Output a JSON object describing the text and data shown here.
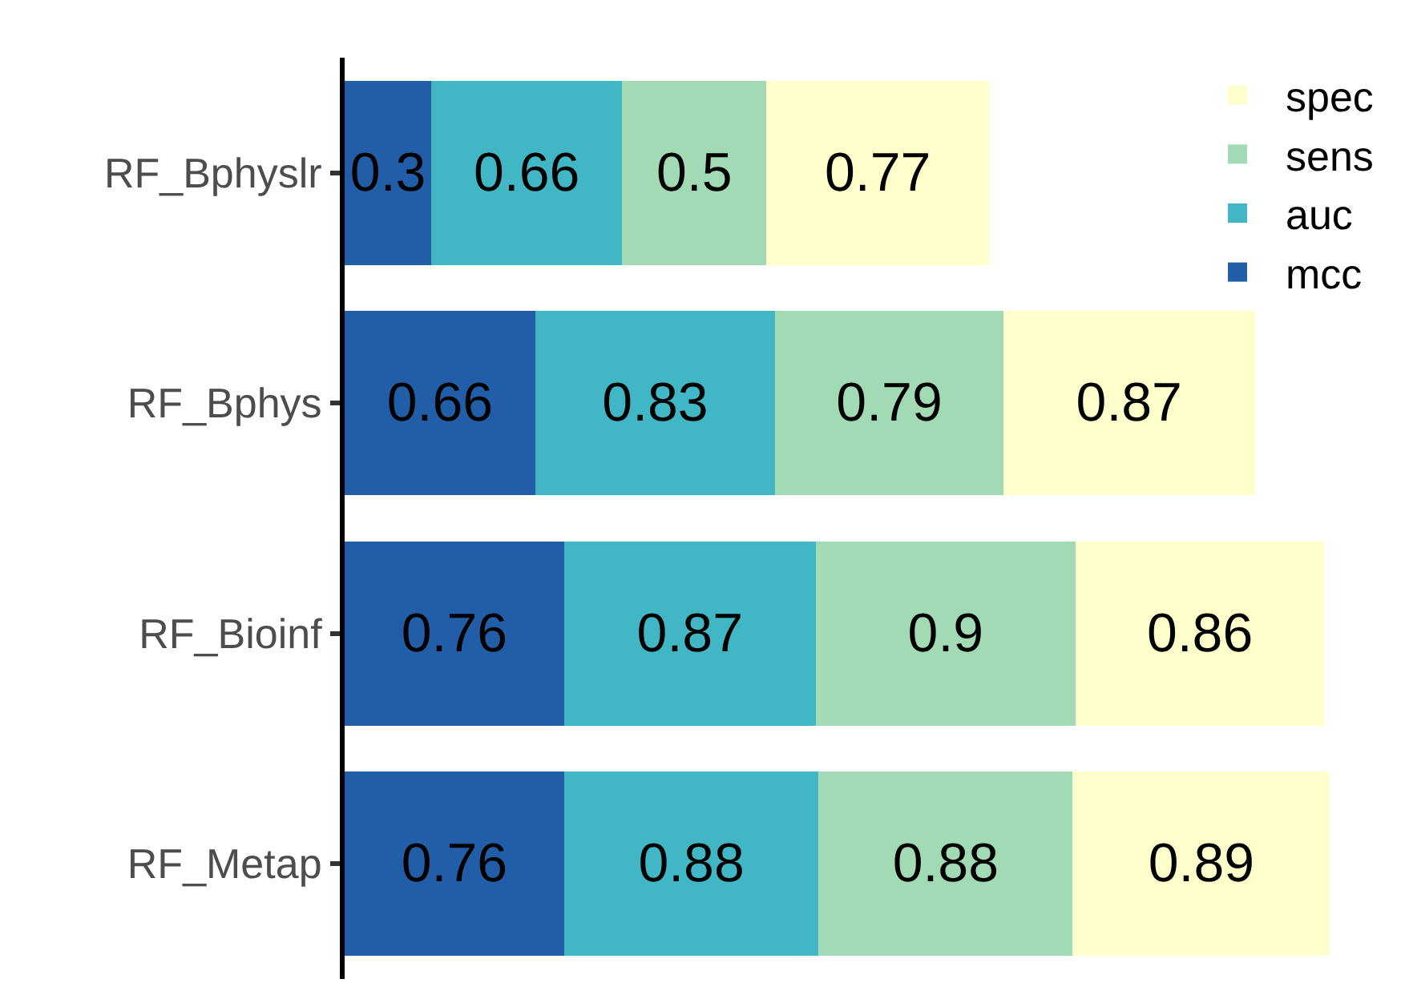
{
  "chart_data": {
    "type": "bar",
    "orientation": "horizontal",
    "stacked": true,
    "categories": [
      "RF_Bphyslr",
      "RF_Bphys",
      "RF_Bioinf",
      "RF_Metap"
    ],
    "series": [
      {
        "name": "mcc",
        "color": "#225ea8",
        "values": [
          0.3,
          0.66,
          0.76,
          0.76
        ]
      },
      {
        "name": "auc",
        "color": "#41b6c4",
        "values": [
          0.66,
          0.83,
          0.87,
          0.88
        ]
      },
      {
        "name": "sens",
        "color": "#a1dab4",
        "values": [
          0.5,
          0.79,
          0.9,
          0.88
        ]
      },
      {
        "name": "spec",
        "color": "#ffffcc",
        "values": [
          0.77,
          0.87,
          0.86,
          0.89
        ]
      }
    ],
    "data_labels": true,
    "legend": "top right",
    "grid": false,
    "tick_labels": "y"
  }
}
